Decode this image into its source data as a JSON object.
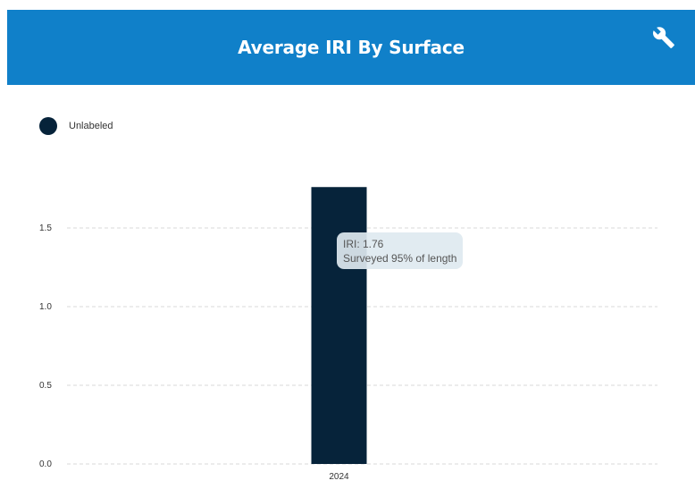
{
  "header": {
    "title": "Average IRI By Surface",
    "settings_icon": "wrench-icon",
    "background_color": "#1080c9"
  },
  "legend": {
    "items": [
      {
        "label": "Unlabeled",
        "color": "#06233a"
      }
    ]
  },
  "tooltip": {
    "line1": "IRI: 1.76",
    "line2": "Surveyed 95% of length"
  },
  "chart_data": {
    "type": "bar",
    "title": "Average IRI By Surface",
    "xlabel": "",
    "ylabel": "",
    "categories": [
      "2024"
    ],
    "series": [
      {
        "name": "Unlabeled",
        "values": [
          1.76
        ],
        "color": "#06233a"
      }
    ],
    "ylim": [
      0,
      1.76
    ],
    "yticks": [
      {
        "value": 0.0,
        "label": "0.0"
      },
      {
        "value": 0.5,
        "label": "0.5"
      },
      {
        "value": 1.0,
        "label": "1.0"
      },
      {
        "value": 1.5,
        "label": "1.5"
      }
    ],
    "grid": true,
    "legend_position": "top-left"
  }
}
